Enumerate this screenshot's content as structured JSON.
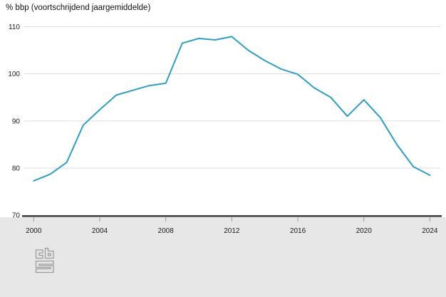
{
  "window": {
    "background_color": "#ffffff",
    "footer_background_color": "#e7e7e7"
  },
  "chart_data": {
    "type": "line",
    "title": "% bbp (voortschrijdend jaargemiddelde)",
    "x": [
      2000,
      2001,
      2002,
      2003,
      2004,
      2005,
      2006,
      2007,
      2008,
      2009,
      2010,
      2011,
      2012,
      2013,
      2014,
      2015,
      2016,
      2017,
      2018,
      2019,
      2020,
      2021,
      2022,
      2023,
      2024
    ],
    "series": [
      {
        "name": "% bbp (voortschrijdend jaargemiddelde)",
        "color": "#2ba0c4",
        "values": [
          77.3,
          78.7,
          81.2,
          89.1,
          92.4,
          95.5,
          96.5,
          97.5,
          98.0,
          106.5,
          107.5,
          107.2,
          107.9,
          105.0,
          102.8,
          101.0,
          99.9,
          97.0,
          95.0,
          91.0,
          94.5,
          90.7,
          85.0,
          80.3,
          78.5
        ]
      }
    ],
    "xlim": [
      2000,
      2024
    ],
    "ylim": [
      70,
      110
    ],
    "x_ticks": [
      2000,
      2004,
      2008,
      2012,
      2016,
      2020,
      2024
    ],
    "y_ticks": [
      70,
      80,
      90,
      100,
      110
    ],
    "grid": "horizontal gridlines at each y tick, x axis drawn as dark baseline at y=70",
    "legend": "none",
    "colors": {
      "line": "#2ba0c4",
      "gridline": "#dcdcdc",
      "axis_line": "#3a3a3a",
      "tick_mark": "#999999",
      "tick_label": "#1a1a1a",
      "title_text": "#111111"
    }
  },
  "footer": {
    "logo_icon": "cbs-logo",
    "logo_color": "#9b9b9b"
  }
}
